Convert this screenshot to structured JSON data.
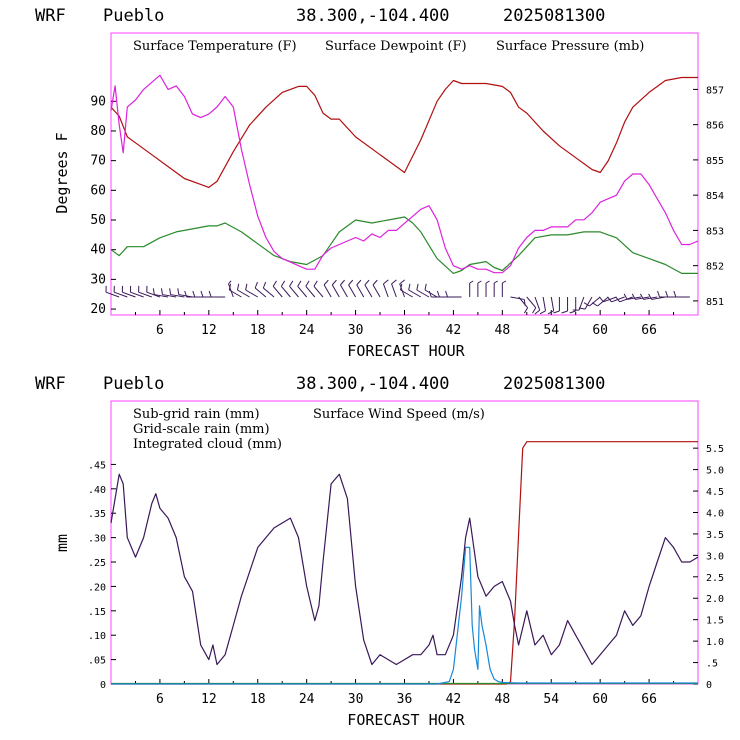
{
  "colors": {
    "temperature": "#b01010",
    "dewpoint": "#2a8a2a",
    "pressure": "#dd22dd",
    "subgrid": "#b01010",
    "gridscale": "#2a8a2a",
    "cloud": "#1888d8",
    "wind": "#3a1858",
    "barbs": "#3a1858"
  },
  "chart_data": [
    {
      "type": "line",
      "header": {
        "model": "WRF",
        "site": "Pueblo",
        "coords": "38.300,-104.400",
        "run": "2025081300"
      },
      "xlabel": "FORECAST HOUR",
      "ylabel": "Degrees F",
      "xlim": [
        0,
        72
      ],
      "ylim": [
        18,
        113
      ],
      "y2lim": [
        850.6,
        858.6
      ],
      "x_ticks": [
        "6",
        "12",
        "18",
        "24",
        "30",
        "36",
        "42",
        "48",
        "54",
        "60",
        "66"
      ],
      "y_ticks": [
        "20",
        "30",
        "40",
        "50",
        "60",
        "70",
        "80",
        "90"
      ],
      "y2_ticks": [
        "851",
        "852",
        "853",
        "854",
        "855",
        "856",
        "857"
      ],
      "grid": false,
      "legend": [
        "Surface Temperature (F)",
        "Surface Dewpoint (F)",
        "Surface Pressure (mb)"
      ],
      "series": [
        {
          "name": "Surface Temperature (F)",
          "axis": "left",
          "x": [
            0,
            1,
            2,
            3,
            5,
            7,
            9,
            11,
            12,
            13,
            15,
            17,
            19,
            21,
            23,
            24,
            25,
            26,
            27,
            28,
            30,
            33,
            36,
            38,
            40,
            41,
            42,
            43,
            44,
            45,
            46,
            48,
            49,
            50,
            51,
            53,
            55,
            57,
            59,
            60,
            61,
            62,
            63,
            64,
            66,
            68,
            70,
            72
          ],
          "y": [
            88,
            85,
            78,
            76,
            72,
            68,
            64,
            62,
            61,
            63,
            73,
            82,
            88,
            93,
            95,
            95,
            92,
            86,
            84,
            84,
            78,
            72,
            66,
            77,
            90,
            94,
            97,
            96,
            96,
            96,
            96,
            95,
            93,
            88,
            86,
            80,
            75,
            71,
            67,
            66,
            70,
            76,
            83,
            88,
            93,
            97,
            98,
            98
          ]
        },
        {
          "name": "Surface Dewpoint (F)",
          "axis": "left",
          "x": [
            0,
            1,
            2,
            3,
            4,
            6,
            8,
            10,
            12,
            13,
            14,
            16,
            18,
            20,
            22,
            24,
            26,
            27,
            28,
            30,
            32,
            34,
            36,
            37,
            38,
            40,
            42,
            43,
            44,
            46,
            47,
            48,
            50,
            51,
            52,
            54,
            56,
            58,
            60,
            61,
            62,
            64,
            66,
            68,
            70,
            72
          ],
          "y": [
            40,
            38,
            41,
            41,
            41,
            44,
            46,
            47,
            48,
            48,
            49,
            46,
            42,
            38,
            36,
            35,
            38,
            42,
            46,
            50,
            49,
            50,
            51,
            49,
            46,
            37,
            32,
            33,
            35,
            36,
            34,
            33,
            38,
            41,
            44,
            45,
            45,
            46,
            46,
            45,
            44,
            39,
            37,
            35,
            32,
            32
          ]
        },
        {
          "name": "Surface Pressure (mb)",
          "axis": "right",
          "x": [
            0,
            0.5,
            1,
            1.5,
            2,
            3,
            4,
            5,
            6,
            7,
            8,
            9,
            10,
            11,
            12,
            13,
            14,
            15,
            16,
            17,
            18,
            19,
            20,
            21,
            22,
            23,
            24,
            25,
            26,
            27,
            28,
            29,
            30,
            31,
            32,
            33,
            34,
            35,
            36,
            37,
            38,
            39,
            40,
            41,
            42,
            43,
            44,
            45,
            46,
            47,
            48,
            49,
            50,
            51,
            52,
            53,
            54,
            55,
            56,
            57,
            58,
            59,
            60,
            61,
            62,
            63,
            64,
            65,
            66,
            67,
            68,
            69,
            70,
            71,
            72
          ],
          "y": [
            856.4,
            857.1,
            856.0,
            855.2,
            856.5,
            856.7,
            857.0,
            857.2,
            857.4,
            857.0,
            857.1,
            856.8,
            856.3,
            856.2,
            856.3,
            856.5,
            856.8,
            856.5,
            855.3,
            854.3,
            853.4,
            852.8,
            852.4,
            852.2,
            852.1,
            852.0,
            851.9,
            851.9,
            852.3,
            852.5,
            852.6,
            852.7,
            852.8,
            852.7,
            852.9,
            852.8,
            853.0,
            853.0,
            853.2,
            853.4,
            853.6,
            853.7,
            853.3,
            852.5,
            852.0,
            851.9,
            852.0,
            851.9,
            851.9,
            851.8,
            851.8,
            852.0,
            852.5,
            852.8,
            853.0,
            853.0,
            853.1,
            853.1,
            853.1,
            853.3,
            853.3,
            853.5,
            853.8,
            853.9,
            854.0,
            854.4,
            854.6,
            854.6,
            854.3,
            853.9,
            853.5,
            853.0,
            852.6,
            852.6,
            852.7
          ]
        }
      ],
      "wind_barbs": {
        "x": [
          1,
          2,
          3,
          4,
          5,
          6,
          7,
          8,
          9,
          10,
          11,
          12,
          13,
          14,
          15,
          16,
          17,
          18,
          19,
          20,
          21,
          22,
          23,
          24,
          25,
          26,
          27,
          28,
          29,
          30,
          31,
          32,
          33,
          34,
          35,
          36,
          37,
          38,
          39,
          40,
          41,
          42,
          43,
          44,
          45,
          46,
          47,
          48,
          49,
          50,
          51,
          52,
          53,
          54,
          55,
          56,
          57,
          58,
          59,
          60,
          61,
          62,
          63,
          64,
          65,
          66,
          67,
          68,
          69,
          70,
          71
        ],
        "dir": [
          290,
          290,
          290,
          290,
          290,
          290,
          280,
          280,
          280,
          280,
          270,
          270,
          270,
          270,
          340,
          300,
          300,
          300,
          310,
          310,
          320,
          320,
          320,
          320,
          320,
          320,
          330,
          330,
          330,
          330,
          330,
          330,
          330,
          340,
          340,
          340,
          300,
          300,
          300,
          300,
          270,
          270,
          270,
          0,
          0,
          0,
          0,
          0,
          100,
          140,
          140,
          160,
          170,
          170,
          180,
          180,
          180,
          200,
          210,
          230,
          230,
          250,
          250,
          250,
          260,
          260,
          260,
          260,
          270,
          270,
          270
        ],
        "spd": [
          10,
          10,
          10,
          10,
          10,
          10,
          10,
          10,
          10,
          10,
          10,
          10,
          10,
          10,
          5,
          10,
          10,
          10,
          10,
          10,
          10,
          10,
          10,
          10,
          10,
          10,
          10,
          10,
          10,
          10,
          10,
          10,
          10,
          10,
          10,
          10,
          10,
          10,
          10,
          10,
          10,
          10,
          10,
          5,
          5,
          5,
          5,
          5,
          10,
          10,
          10,
          10,
          10,
          10,
          10,
          10,
          10,
          10,
          10,
          10,
          10,
          10,
          10,
          10,
          10,
          10,
          10,
          10,
          10,
          10,
          10
        ]
      }
    },
    {
      "type": "line",
      "header": {
        "model": "WRF",
        "site": "Pueblo",
        "coords": "38.300,-104.400",
        "run": "2025081300"
      },
      "xlabel": "FORECAST HOUR",
      "ylabel": "mm",
      "xlim": [
        0,
        72
      ],
      "ylim": [
        0,
        0.58
      ],
      "y2lim": [
        0,
        6.6
      ],
      "x_ticks": [
        "6",
        "12",
        "18",
        "24",
        "30",
        "36",
        "42",
        "48",
        "54",
        "60",
        "66"
      ],
      "y_ticks": [
        "0",
        ".05",
        ".10",
        ".15",
        ".20",
        ".25",
        ".30",
        ".35",
        ".40",
        ".45"
      ],
      "y2_ticks": [
        "0",
        ".5",
        "1.0",
        "1.5",
        "2.0",
        "2.5",
        "3.0",
        "3.5",
        "4.0",
        "4.5",
        "5.0",
        "5.5"
      ],
      "grid": false,
      "legend": [
        "Sub-grid rain (mm)",
        "Surface Wind Speed (m/s)",
        "Grid-scale rain (mm)",
        "Integrated cloud (mm)"
      ],
      "series": [
        {
          "name": "Sub-grid rain (mm)",
          "axis": "right",
          "x": [
            0,
            48.5,
            49,
            49.5,
            50,
            50.5,
            51,
            72
          ],
          "y": [
            0,
            0,
            0.05,
            1.5,
            3.5,
            5.5,
            5.65,
            5.65
          ]
        },
        {
          "name": "Surface Wind Speed (m/s)",
          "axis": "left",
          "x": [
            0,
            0.5,
            1,
            1.5,
            2,
            3,
            4,
            5,
            5.5,
            6,
            7,
            8,
            9,
            10,
            11,
            12,
            12.5,
            13,
            14,
            15,
            16,
            17,
            18,
            19,
            20,
            21,
            22,
            23,
            24,
            25,
            25.5,
            26,
            27,
            28,
            29,
            30,
            31,
            32,
            33,
            34,
            35,
            36,
            37,
            38,
            39,
            39.5,
            40,
            41,
            42,
            43,
            43.5,
            44,
            44.5,
            45,
            45.5,
            46,
            47,
            48,
            49,
            49.5,
            50,
            51,
            52,
            53,
            54,
            55,
            56,
            57,
            58,
            59,
            60,
            61,
            62,
            63,
            64,
            65,
            66,
            67,
            68,
            69,
            70,
            71,
            72
          ],
          "y": [
            0.33,
            0.38,
            0.43,
            0.41,
            0.3,
            0.26,
            0.3,
            0.37,
            0.39,
            0.36,
            0.34,
            0.3,
            0.22,
            0.19,
            0.08,
            0.05,
            0.08,
            0.04,
            0.06,
            0.12,
            0.18,
            0.23,
            0.28,
            0.3,
            0.32,
            0.33,
            0.34,
            0.3,
            0.2,
            0.13,
            0.16,
            0.25,
            0.41,
            0.43,
            0.38,
            0.2,
            0.09,
            0.04,
            0.06,
            0.05,
            0.04,
            0.05,
            0.06,
            0.06,
            0.08,
            0.1,
            0.06,
            0.06,
            0.1,
            0.22,
            0.3,
            0.34,
            0.28,
            0.22,
            0.2,
            0.18,
            0.2,
            0.21,
            0.17,
            0.12,
            0.08,
            0.15,
            0.08,
            0.1,
            0.06,
            0.08,
            0.13,
            0.1,
            0.07,
            0.04,
            0.06,
            0.08,
            0.1,
            0.15,
            0.12,
            0.14,
            0.2,
            0.25,
            0.3,
            0.28,
            0.25,
            0.25,
            0.26
          ]
        },
        {
          "name": "Grid-scale rain (mm)",
          "axis": "left",
          "x": [
            0,
            72
          ],
          "y": [
            0.001,
            0.001
          ]
        },
        {
          "name": "Integrated cloud (mm)",
          "axis": "left",
          "x": [
            0,
            40,
            41.5,
            42,
            43,
            43.5,
            44,
            44.3,
            44.6,
            45,
            45.2,
            45.5,
            46,
            46.5,
            47,
            47.5,
            48,
            50,
            72
          ],
          "y": [
            0,
            0,
            0.005,
            0.03,
            0.18,
            0.28,
            0.28,
            0.12,
            0.07,
            0.03,
            0.16,
            0.12,
            0.08,
            0.03,
            0.01,
            0.005,
            0.003,
            0.002,
            0.002
          ]
        }
      ]
    }
  ]
}
